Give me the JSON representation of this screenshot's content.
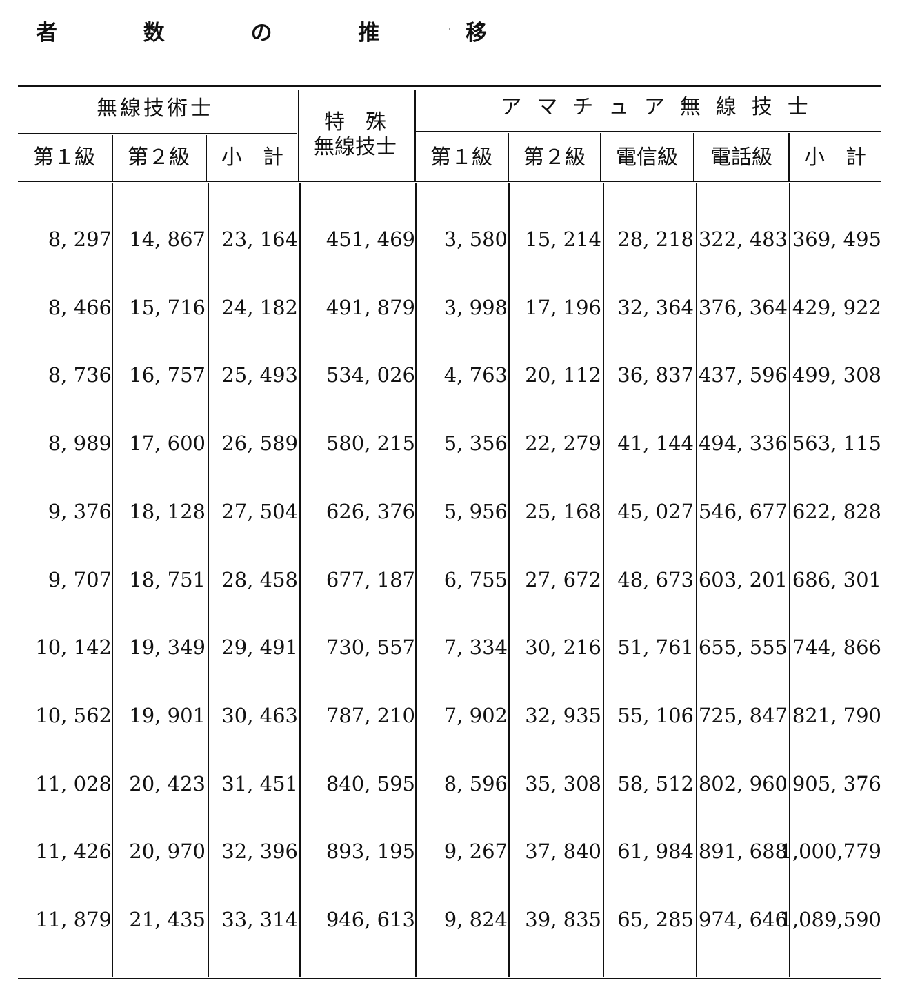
{
  "title": "者 数 の 推 移",
  "headers": {
    "musen_gijutsushi": "無線技術士",
    "tokushu_line1": "特　殊",
    "tokushu_line2": "無線技士",
    "amateur": "アマチュア無線技士",
    "mg_level1": "第１級",
    "mg_level2": "第２級",
    "mg_subtotal": "小　計",
    "am_level1": "第１級",
    "am_level2": "第２級",
    "am_telegraph": "電信級",
    "am_telephone": "電話級",
    "am_subtotal": "小　計"
  },
  "rows": [
    [
      "8, 297",
      "14, 867",
      "23, 164",
      "451, 469",
      "3, 580",
      "15, 214",
      "28, 218",
      "322, 483",
      "369, 495"
    ],
    [
      "8, 466",
      "15, 716",
      "24, 182",
      "491, 879",
      "3, 998",
      "17, 196",
      "32, 364",
      "376, 364",
      "429, 922"
    ],
    [
      "8, 736",
      "16, 757",
      "25, 493",
      "534, 026",
      "4, 763",
      "20, 112",
      "36, 837",
      "437, 596",
      "499, 308"
    ],
    [
      "8, 989",
      "17, 600",
      "26, 589",
      "580, 215",
      "5, 356",
      "22, 279",
      "41, 144",
      "494, 336",
      "563, 115"
    ],
    [
      "9, 376",
      "18, 128",
      "27, 504",
      "626, 376",
      "5, 956",
      "25, 168",
      "45, 027",
      "546, 677",
      "622, 828"
    ],
    [
      "9, 707",
      "18, 751",
      "28, 458",
      "677, 187",
      "6, 755",
      "27, 672",
      "48, 673",
      "603, 201",
      "686, 301"
    ],
    [
      "10, 142",
      "19, 349",
      "29, 491",
      "730, 557",
      "7, 334",
      "30, 216",
      "51, 761",
      "655, 555",
      "744, 866"
    ],
    [
      "10, 562",
      "19, 901",
      "30, 463",
      "787, 210",
      "7, 902",
      "32, 935",
      "55, 106",
      "725, 847",
      "821, 790"
    ],
    [
      "11, 028",
      "20, 423",
      "31, 451",
      "840, 595",
      "8, 596",
      "35, 308",
      "58, 512",
      "802, 960",
      "905, 376"
    ],
    [
      "11, 426",
      "20, 970",
      "32, 396",
      "893, 195",
      "9, 267",
      "37, 840",
      "61, 984",
      "891, 688",
      "1,000,779"
    ],
    [
      "11, 879",
      "21, 435",
      "33, 314",
      "946, 613",
      "9, 824",
      "39, 835",
      "65, 285",
      "974, 646",
      "1,089,590"
    ]
  ]
}
